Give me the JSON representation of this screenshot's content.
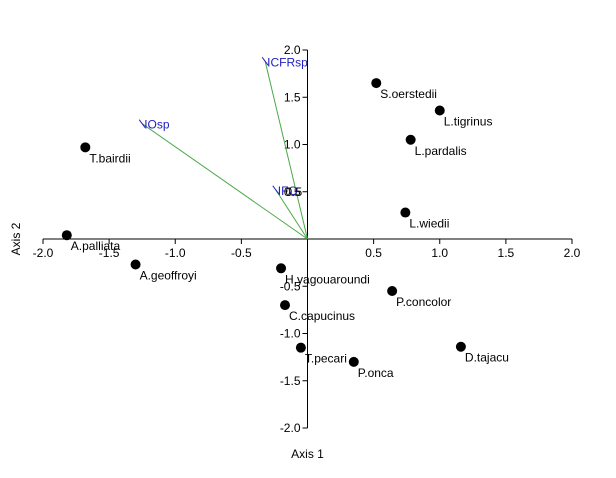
{
  "chart_data": {
    "type": "scatter",
    "title": "",
    "xlabel": "Axis 1",
    "ylabel": "Axis 2",
    "xlim": [
      -2.0,
      2.0
    ],
    "ylim": [
      -2.0,
      2.0
    ],
    "x_ticks": [
      "-2.0",
      "-1.5",
      "-1.0",
      "-0.5",
      "0.5",
      "1.0",
      "1.5",
      "2.0"
    ],
    "y_ticks": [
      "2.0",
      "1.5",
      "1.0",
      "0.5",
      "-0.5",
      "-1.0",
      "-1.5",
      "-2.0"
    ],
    "grid": false,
    "legend": "none",
    "point_color": "#000000",
    "vector_color": "#4aa84a",
    "vector_label_color": "#2020c0",
    "points": [
      {
        "label": "S.oerstedii",
        "x": 0.52,
        "y": 1.65
      },
      {
        "label": "L.tigrinus",
        "x": 1.0,
        "y": 1.36
      },
      {
        "label": "L.pardalis",
        "x": 0.78,
        "y": 1.05
      },
      {
        "label": "T.bairdii",
        "x": -1.68,
        "y": 0.97
      },
      {
        "label": "L.wiedii",
        "x": 0.74,
        "y": 0.28
      },
      {
        "label": "A.palliata",
        "x": -1.82,
        "y": 0.04
      },
      {
        "label": "A.geoffroyi",
        "x": -1.3,
        "y": -0.27
      },
      {
        "label": "H.yagouaroundi",
        "x": -0.2,
        "y": -0.31
      },
      {
        "label": "P.concolor",
        "x": 0.64,
        "y": -0.55
      },
      {
        "label": "C.capucinus",
        "x": -0.17,
        "y": -0.7
      },
      {
        "label": "T.pecari",
        "x": -0.05,
        "y": -1.15
      },
      {
        "label": "D.tajacu",
        "x": 1.16,
        "y": -1.14
      },
      {
        "label": "P.onca",
        "x": 0.35,
        "y": -1.3
      }
    ],
    "vectors": [
      {
        "label": "ICFRsp",
        "x": -0.32,
        "y": 1.88
      },
      {
        "label": "IOsp",
        "x": -1.25,
        "y": 1.22
      },
      {
        "label": "IFO",
        "x": -0.24,
        "y": 0.52
      }
    ],
    "overlap_text": "0.5"
  }
}
